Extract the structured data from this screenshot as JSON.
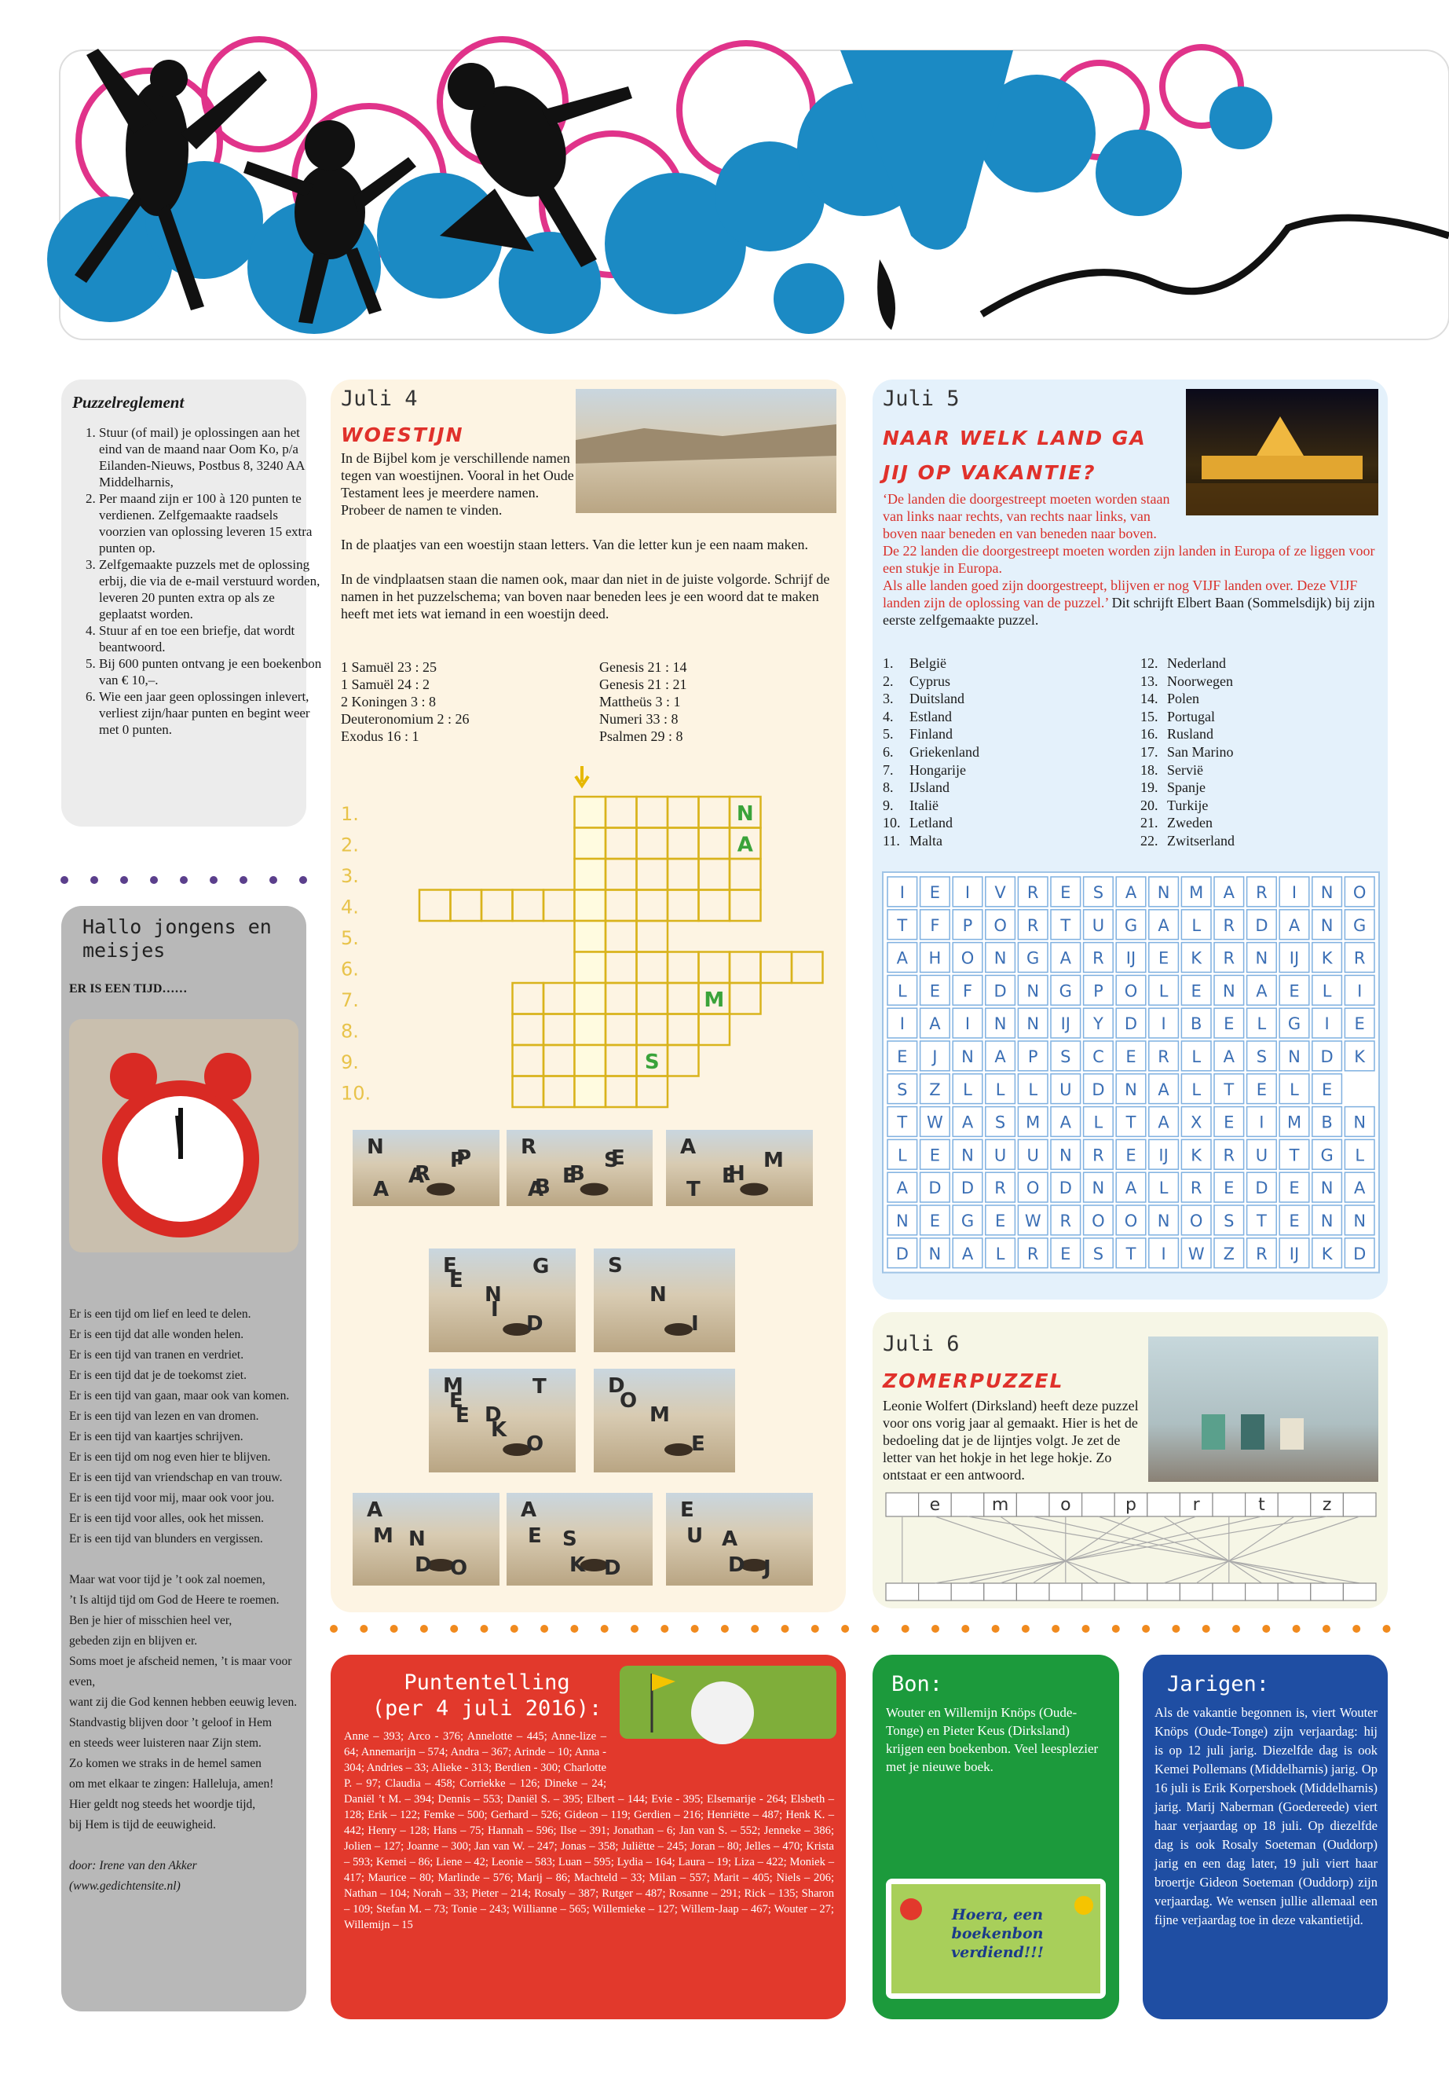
{
  "reglement": {
    "title": "Puzzelreglement",
    "items": [
      "Stuur (of mail) je oplossingen aan het eind van de maand naar Oom Ko, p/a Eilanden-Nieuws, Postbus 8, 3240 AA Middelharnis,",
      "Per maand zijn er 100 à 120 punten te verdienen. Zelfgemaakte raadsels voorzien van oplossing leveren 15 extra punten op.",
      "Zelfgemaakte puzzels met de oplossing erbij, die via de e-mail verstuurd worden, leveren 20 punten extra op als ze geplaatst worden.",
      "Stuur af en toe een briefje, dat wordt beantwoord.",
      "Bij 600 punten ontvang je een boekenbon van € 10,–.",
      "Wie een jaar geen oplossingen inlevert, verliest zijn/haar punten en begint weer met 0 punten."
    ]
  },
  "hallo": {
    "title": "Hallo jongens en meisjes",
    "subtitle": "ER IS EEN TIJD……",
    "poem": [
      "Er is een tijd om lief en leed te delen.",
      "Er is een tijd dat alle wonden helen.",
      "Er is een tijd van tranen en verdriet.",
      "Er is een tijd dat je de toekomst ziet.",
      "Er is een tijd van gaan, maar ook van komen.",
      "Er is een tijd van lezen en van dromen.",
      "Er is een tijd van kaartjes schrijven.",
      "Er is een tijd om nog even hier te blijven.",
      "Er is een tijd van vriendschap en van trouw.",
      "Er is een tijd voor mij, maar ook voor jou.",
      "Er is een tijd voor alles, ook het missen.",
      "Er is een tijd van blunders en vergissen."
    ],
    "stanza2": [
      "Maar wat voor tijd je ’t ook zal noemen,",
      "’t Is altijd tijd om God de Heere te roemen.",
      "Ben je hier of misschien heel ver,",
      "gebeden zijn en blijven er.",
      "Soms moet je afscheid nemen, ’t is maar voor even,",
      "want zij die God kennen hebben eeuwig leven.",
      "Standvastig blijven door ’t geloof in Hem",
      "en steeds weer luisteren naar Zijn stem.",
      "Zo komen we straks in de hemel samen",
      "om met elkaar te zingen: Halleluja, amen!",
      "Hier geldt nog steeds het woordje tijd,",
      "bij Hem is tijd de eeuwigheid."
    ],
    "credit": [
      "door: Irene van den Akker",
      "(www.gedichtensite.nl)"
    ]
  },
  "juli4": {
    "date": "Juli 4",
    "title": "WOESTIJN",
    "paragraphs": [
      "In de Bijbel kom je verschillende namen tegen van woestijnen. Vooral in het Oude Testament lees je meerdere namen. Probeer de namen te vinden.",
      "In de plaatjes van een woestijn staan letters. Van die letter kun je een naam maken.",
      "In de vindplaatsen staan die namen ook, maar dan niet in de juiste volgorde. Schrijf de namen in het puzzelschema; van boven naar beneden lees je een woord dat te maken heeft met iets wat iemand in een woestijn deed."
    ],
    "references_left": [
      "1 Samuël 23 : 25",
      "1 Samuël 24 : 2",
      "2 Koningen 3 : 8",
      "Deuteronomium 2 : 26",
      "Exodus 16 : 1"
    ],
    "references_right": [
      "Genesis 21 : 14",
      "Genesis 21 : 21",
      "Mattheüs 3 : 1",
      "Numeri 33 : 8",
      "Psalmen 29 : 8"
    ],
    "crossword": {
      "numbers": [
        "1.",
        "2.",
        "3.",
        "4.",
        "5.",
        "6.",
        "7.",
        "8.",
        "9.",
        "10."
      ],
      "letters": [
        "N",
        "A",
        "M",
        "S"
      ]
    },
    "tiles": [
      [
        "N",
        "A",
        "P",
        "A",
        "R",
        "P"
      ],
      [
        "R",
        "E",
        "S",
        "A",
        "B",
        "E",
        "B"
      ],
      [
        "A",
        "E",
        "M",
        "T",
        "H"
      ],
      [
        "E",
        "N",
        "D",
        "E",
        "I",
        "G"
      ],
      [
        "S",
        "N",
        "I"
      ],
      [
        "M",
        "D",
        "O",
        "E",
        "K",
        "T",
        "E"
      ],
      [
        "D",
        "M",
        "E",
        "O"
      ],
      [
        "A",
        "N",
        "O",
        "M",
        "D"
      ],
      [
        "A",
        "S",
        "D",
        "E",
        "K"
      ],
      [
        "E",
        "A",
        "J",
        "U",
        "D"
      ]
    ]
  },
  "juli5": {
    "date": "Juli 5",
    "title": "NAAR WELK LAND GA JIJ OP VAKANTIE?",
    "intro": [
      "‘De landen die doorgestreept moeten worden staan van links naar rechts, van rechts naar links, van boven naar beneden en van beneden naar boven.",
      "De 22 landen die doorgestreept moeten worden zijn landen in Europa of ze liggen voor een stukje in Europa.",
      "Als alle landen goed zijn doorgestreept, blijven er nog VIJF landen over. Deze VIJF landen zijn de oplossing van de puzzel.’"
    ],
    "note": "Dit schrijft Elbert Baan (Sommelsdijk) bij zijn eerste zelfgemaakte puzzel.",
    "countries": [
      {
        "num": "1.",
        "name": "België"
      },
      {
        "num": "2.",
        "name": "Cyprus"
      },
      {
        "num": "3.",
        "name": "Duitsland"
      },
      {
        "num": "4.",
        "name": "Estland"
      },
      {
        "num": "5.",
        "name": "Finland"
      },
      {
        "num": "6.",
        "name": "Griekenland"
      },
      {
        "num": "7.",
        "name": "Hongarije"
      },
      {
        "num": "8.",
        "name": "IJsland"
      },
      {
        "num": "9.",
        "name": "Italië"
      },
      {
        "num": "10.",
        "name": "Letland"
      },
      {
        "num": "11.",
        "name": "Malta"
      },
      {
        "num": "12.",
        "name": "Nederland"
      },
      {
        "num": "13.",
        "name": "Noorwegen"
      },
      {
        "num": "14.",
        "name": "Polen"
      },
      {
        "num": "15.",
        "name": "Portugal"
      },
      {
        "num": "16.",
        "name": "Rusland"
      },
      {
        "num": "17.",
        "name": "San Marino"
      },
      {
        "num": "18.",
        "name": "Servië"
      },
      {
        "num": "19.",
        "name": "Spanje"
      },
      {
        "num": "20.",
        "name": "Turkije"
      },
      {
        "num": "21.",
        "name": "Zweden"
      },
      {
        "num": "22.",
        "name": "Zwitserland"
      }
    ],
    "grid": [
      [
        "I",
        "E",
        "I",
        "V",
        "R",
        "E",
        "S",
        "A",
        "N",
        "M",
        "A",
        "R",
        "I",
        "N",
        "O"
      ],
      [
        "T",
        "F",
        "P",
        "O",
        "R",
        "T",
        "U",
        "G",
        "A",
        "L",
        "R",
        "D",
        "A",
        "N",
        "G"
      ],
      [
        "A",
        "H",
        "O",
        "N",
        "G",
        "A",
        "R",
        "IJ",
        "E",
        "K",
        "R",
        "N",
        "IJ",
        "K",
        "R"
      ],
      [
        "L",
        "E",
        "F",
        "D",
        "N",
        "G",
        "P",
        "O",
        "L",
        "E",
        "N",
        "A",
        "E",
        "L",
        "I"
      ],
      [
        "I",
        "A",
        "I",
        "N",
        "N",
        "IJ",
        "Y",
        "D",
        "I",
        "B",
        "E",
        "L",
        "G",
        "I",
        "E"
      ],
      [
        "E",
        "J",
        "N",
        "A",
        "P",
        "S",
        "C",
        "E",
        "R",
        "L",
        "A",
        "S",
        "N",
        "D",
        "K"
      ],
      [
        "S",
        "Z",
        "L",
        "L",
        "L",
        "U",
        "D",
        "N",
        "A",
        "L",
        "T",
        "E",
        "L",
        "E"
      ],
      [
        "T",
        "W",
        "A",
        "S",
        "M",
        "A",
        "L",
        "T",
        "A",
        "X",
        "E",
        "I",
        "M",
        "B",
        "N"
      ],
      [
        "L",
        "E",
        "N",
        "U",
        "U",
        "N",
        "R",
        "E",
        "IJ",
        "K",
        "R",
        "U",
        "T",
        "G",
        "L"
      ],
      [
        "A",
        "D",
        "D",
        "R",
        "O",
        "D",
        "N",
        "A",
        "L",
        "R",
        "E",
        "D",
        "E",
        "N",
        "A"
      ],
      [
        "N",
        "E",
        "G",
        "E",
        "W",
        "R",
        "O",
        "O",
        "N",
        "O",
        "S",
        "T",
        "E",
        "N",
        "N"
      ],
      [
        "D",
        "N",
        "A",
        "L",
        "R",
        "E",
        "S",
        "T",
        "I",
        "W",
        "Z",
        "R",
        "IJ",
        "K",
        "D"
      ]
    ]
  },
  "juli6": {
    "date": "Juli 6",
    "title": "ZOMERPUZZEL",
    "text": "Leonie Wolfert (Dirksland) heeft deze puzzel voor ons vorig jaar al gemaakt. Hier is het de bedoeling dat je de lijntjes volgt. Je zet de letter van het hokje in het lege hokje. Zo ontstaat er een antwoord.",
    "letters": [
      "e",
      "m",
      "o",
      "p",
      "r",
      "t",
      "z"
    ]
  },
  "puntentelling": {
    "title_lines": [
      "Puntentelling",
      "(per 4 juli 2016):"
    ],
    "body": "Anne – 393; Arco - 376; Annelotte – 445; Anne-lize – 64; Annemarijn – 574; Andra – 367; Arinde – 10; Anna - 304; Andries – 33; Alieke - 313; Berdien - 300; Charlotte P. – 97; Claudia – 458; Corriekke – 126; Dineke – 24; Daniël ’t M. – 394; Dennis – 553; Daniël S. – 395; Elbert – 144; Evie - 395; Elsemarije - 264; Elsbeth – 128; Erik – 122; Femke – 500; Gerhard – 526; Gideon – 119; Gerdien – 216; Henriëtte – 487; Henk K. – 442; Henry – 128; Hans – 75; Hannah – 596; Ilse – 391; Jonathan – 6; Jan van S. – 552; Jenneke – 386; Jolien – 127; Joanne – 300; Jan van W. – 247; Jonas – 358; Juliëtte – 245; Joran – 80; Jelles – 470; Krista – 593; Kemei – 86; Liene – 42; Leonie – 583; Luan – 595; Lydia – 164; Laura – 19; Liza – 422; Moniek – 417; Maurice – 80; Marlinde – 576; Marij – 86; Machteld – 33; Milan – 557; Marit – 405; Niels – 206; Nathan – 104; Norah – 33; Pieter – 214; Rosaly – 387; Rutger – 487; Rosanne – 291; Rick – 135; Sharon – 109; Stefan M. – 73; Tonie – 243; Willianne – 565; Willemieke – 127; Willem-Jaap – 467; Wouter – 27; Willemijn – 15"
  },
  "bon": {
    "title": "Bon:",
    "text": "Wouter en Willemijn Knöps (Oude-Tonge) en Pieter Keus (Dirksland) krijgen een boekenbon. Veel leesplezier met je nieuwe boek.",
    "image_text": "Hoera, een boekenbon verdiend!!!"
  },
  "jarigen": {
    "title": "Jarigen:",
    "text": "Als de vakantie begonnen is, viert Wouter Knöps (Oude-Tonge) zijn verjaardag: hij is op 12 juli jarig. Diezelfde dag is ook Kemei Pollemans (Middelharnis) jarig. Op 16 juli is Erik Korpershoek (Middelharnis) jarig. Marij Naberman (Goedereede) viert haar verjaardag op 18 juli. Op diezelfde dag is ook Rosaly Soeteman (Ouddorp) jarig en een dag later, 19 juli viert haar broertje Gideon Soeteman (Ouddorp) zijn verjaardag. We wensen jullie allemaal een fijne verjaardag toe in deze vakantietijd."
  }
}
